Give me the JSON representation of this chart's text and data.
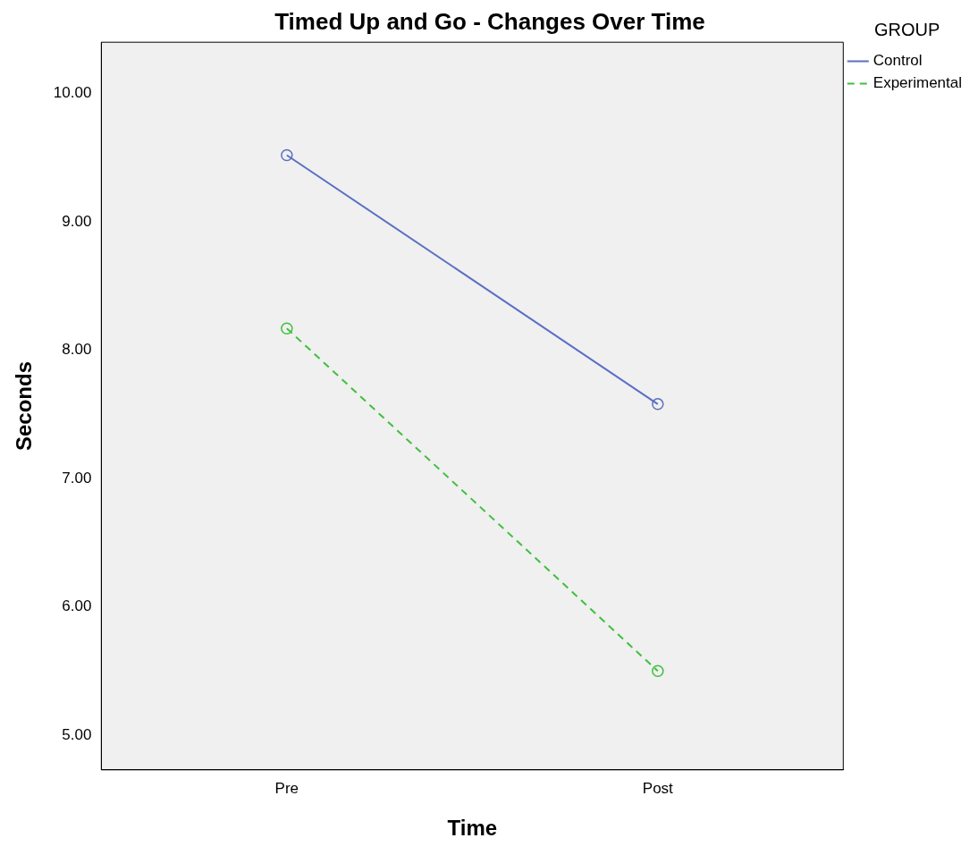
{
  "chart_data": {
    "type": "line",
    "title": "Timed Up and Go - Changes Over Time",
    "xlabel": "Time",
    "ylabel": "Seconds",
    "legend_title": "GROUP",
    "categories": [
      "Pre",
      "Post"
    ],
    "series": [
      {
        "name": "Control",
        "color": "#5b6fc4",
        "values": [
          9.52,
          7.58
        ],
        "line_style": "solid"
      },
      {
        "name": "Experimental",
        "color": "#3fbf3f",
        "values": [
          8.17,
          5.5
        ],
        "line_style": "dashed"
      }
    ],
    "ylim": [
      4.73,
      10.4
    ],
    "yticks": [
      {
        "value": 5,
        "label": "5.00"
      },
      {
        "value": 6,
        "label": "6.00"
      },
      {
        "value": 7,
        "label": "7.00"
      },
      {
        "value": 8,
        "label": "8.00"
      },
      {
        "value": 9,
        "label": "9.00"
      },
      {
        "value": 10,
        "label": "10.00"
      }
    ],
    "grid": false,
    "legend": "top right",
    "marker": "circle"
  }
}
